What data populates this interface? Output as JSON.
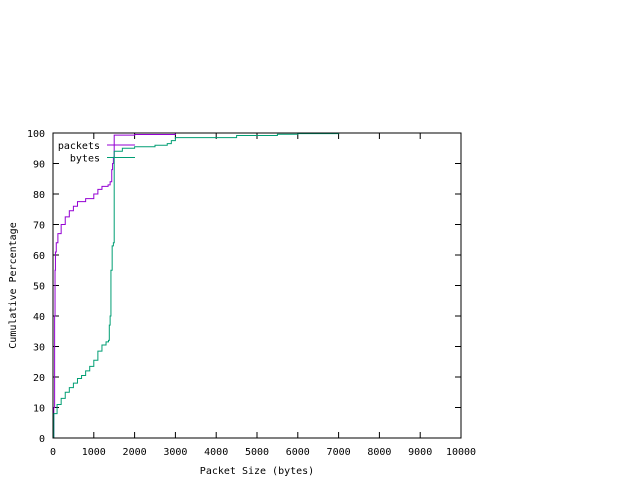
{
  "chart_data": {
    "type": "line",
    "xlabel": "Packet Size (bytes)",
    "ylabel": "Cumulative Percentage",
    "xlim": [
      0,
      10000
    ],
    "ylim": [
      0,
      100
    ],
    "xticks": [
      0,
      1000,
      2000,
      3000,
      4000,
      5000,
      6000,
      7000,
      8000,
      9000,
      10000
    ],
    "yticks": [
      0,
      10,
      20,
      30,
      40,
      50,
      60,
      70,
      80,
      90,
      100
    ],
    "grid": false,
    "legend_position": "top-left",
    "series": [
      {
        "name": "packets",
        "color": "#9400d3",
        "step": true,
        "points": [
          [
            0,
            0
          ],
          [
            20,
            10
          ],
          [
            40,
            40
          ],
          [
            50,
            55
          ],
          [
            60,
            61
          ],
          [
            80,
            64
          ],
          [
            120,
            67
          ],
          [
            200,
            70
          ],
          [
            300,
            72.5
          ],
          [
            400,
            74.5
          ],
          [
            500,
            76
          ],
          [
            600,
            77.5
          ],
          [
            800,
            78.5
          ],
          [
            1000,
            80
          ],
          [
            1100,
            81.5
          ],
          [
            1200,
            82.5
          ],
          [
            1350,
            83
          ],
          [
            1400,
            84
          ],
          [
            1440,
            88
          ],
          [
            1460,
            90
          ],
          [
            1480,
            92
          ],
          [
            1500,
            99.3
          ],
          [
            2000,
            99.5
          ],
          [
            3000,
            100
          ]
        ]
      },
      {
        "name": "bytes",
        "color": "#009e73",
        "step": true,
        "points": [
          [
            0,
            0
          ],
          [
            20,
            8
          ],
          [
            100,
            11
          ],
          [
            200,
            13
          ],
          [
            300,
            15
          ],
          [
            400,
            16.5
          ],
          [
            500,
            18
          ],
          [
            600,
            19.5
          ],
          [
            700,
            20.5
          ],
          [
            800,
            22
          ],
          [
            900,
            23.5
          ],
          [
            1000,
            25.5
          ],
          [
            1100,
            28.5
          ],
          [
            1200,
            30.5
          ],
          [
            1300,
            31.5
          ],
          [
            1360,
            32
          ],
          [
            1380,
            37
          ],
          [
            1400,
            40
          ],
          [
            1420,
            55
          ],
          [
            1450,
            63
          ],
          [
            1480,
            64
          ],
          [
            1500,
            94
          ],
          [
            1700,
            95
          ],
          [
            2000,
            95.5
          ],
          [
            2500,
            96
          ],
          [
            2800,
            96.5
          ],
          [
            2900,
            97.5
          ],
          [
            3000,
            98.5
          ],
          [
            4000,
            98.5
          ],
          [
            4500,
            99.2
          ],
          [
            5500,
            99.6
          ],
          [
            6000,
            99.8
          ],
          [
            7000,
            100
          ]
        ]
      }
    ]
  }
}
